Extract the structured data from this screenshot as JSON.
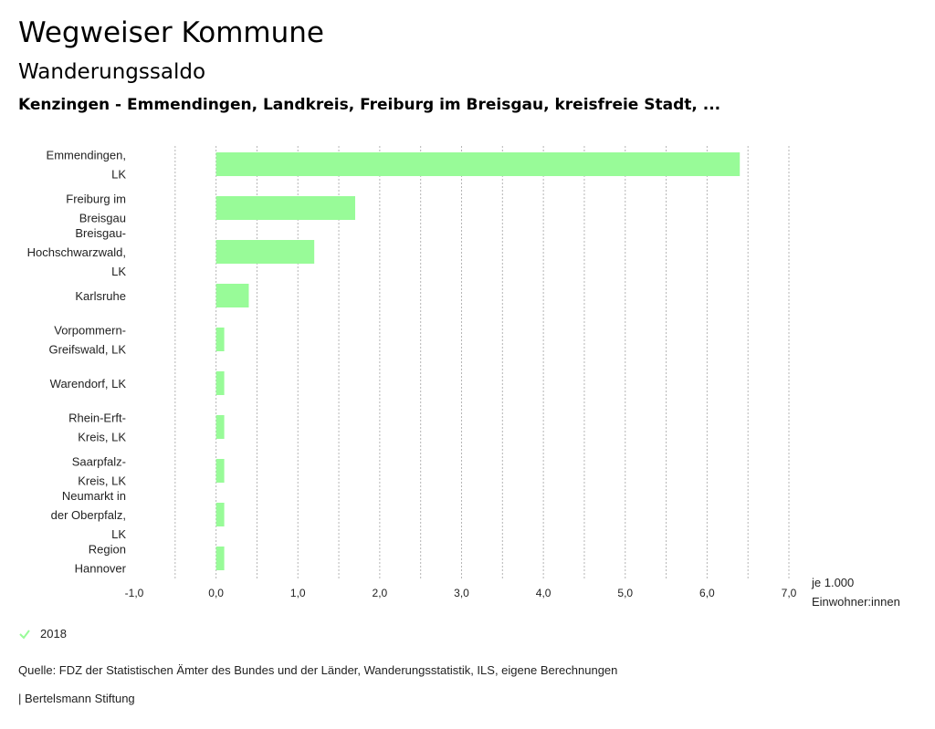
{
  "header": {
    "title": "Wegweiser Kommune",
    "subtitle": "Wanderungssaldo",
    "region": "Kenzingen - Emmendingen, Landkreis, Freiburg im Breisgau, kreisfreie Stadt, ..."
  },
  "chart_data": {
    "type": "bar",
    "orientation": "horizontal",
    "categories": [
      "Emmendingen, LK",
      "Freiburg im Breisgau",
      "Breisgau-Hochschwarzwald, LK",
      "Karlsruhe",
      "Vorpommern-Greifswald, LK",
      "Warendorf, LK",
      "Rhein-Erft-Kreis, LK",
      "Saarpfalz-Kreis, LK",
      "Neumarkt in der Oberpfalz, LK",
      "Region Hannover"
    ],
    "category_label_lines": [
      [
        "Emmendingen,",
        "LK"
      ],
      [
        "Freiburg im",
        "Breisgau"
      ],
      [
        "Breisgau-",
        "Hochschwarzwald,",
        "LK"
      ],
      [
        "Karlsruhe"
      ],
      [
        "Vorpommern-",
        "Greifswald, LK"
      ],
      [
        "Warendorf, LK"
      ],
      [
        "Rhein-Erft-",
        "Kreis, LK"
      ],
      [
        "Saarpfalz-",
        "Kreis, LK"
      ],
      [
        "Neumarkt in",
        "der Oberpfalz,",
        "LK"
      ],
      [
        "Region",
        "Hannover"
      ]
    ],
    "series": [
      {
        "name": "2018",
        "color": "#98fb98",
        "values": [
          6.4,
          1.7,
          1.2,
          0.4,
          0.1,
          0.1,
          0.1,
          0.1,
          0.1,
          0.1
        ]
      }
    ],
    "xlim": [
      -1.0,
      7.0
    ],
    "xticks": [
      -1.0,
      0.0,
      1.0,
      2.0,
      3.0,
      4.0,
      5.0,
      6.0,
      7.0
    ],
    "xtick_labels": [
      "-1,0",
      "0,0",
      "1,0",
      "2,0",
      "3,0",
      "4,0",
      "5,0",
      "6,0",
      "7,0"
    ],
    "grid_lines": [
      -0.5,
      0.0,
      0.5,
      1.0,
      1.5,
      2.0,
      2.5,
      3.0,
      3.5,
      4.0,
      4.5,
      5.0,
      5.5,
      6.0,
      6.5,
      7.0
    ],
    "unit_label": [
      "je 1.000",
      "Einwohner:innen"
    ],
    "legend_position": "bottom-left"
  },
  "legend": {
    "label": "2018",
    "color": "#98fb98"
  },
  "footer": {
    "source": "Quelle: FDZ der Statistischen Ämter des Bundes und der Länder, Wanderungsstatistik, ILS, eigene Berechnungen",
    "credit": "| Bertelsmann Stiftung"
  }
}
